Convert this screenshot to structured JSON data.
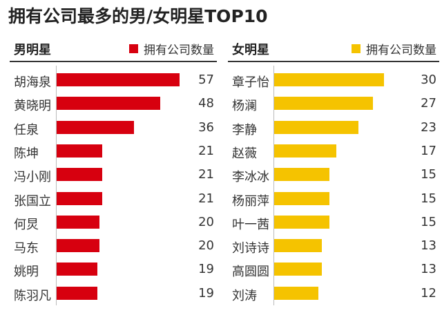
{
  "title": "拥有公司最多的男/女明星TOP10",
  "chart_data": [
    {
      "type": "bar",
      "orientation": "horizontal",
      "panel_title": "男明星",
      "legend": "拥有公司数量",
      "color": "#d7000f",
      "categories": [
        "胡海泉",
        "黄晓明",
        "任泉",
        "陈坤",
        "冯小刚",
        "张国立",
        "何炅",
        "马东",
        "姚明",
        "陈羽凡"
      ],
      "values": [
        57,
        48,
        36,
        21,
        21,
        21,
        20,
        20,
        19,
        19
      ]
    },
    {
      "type": "bar",
      "orientation": "horizontal",
      "panel_title": "女明星",
      "legend": "拥有公司数量",
      "color": "#f5c300",
      "categories": [
        "章子怡",
        "杨澜",
        "李静",
        "赵薇",
        "李冰冰",
        "杨丽萍",
        "叶一茜",
        "刘诗诗",
        "高圆圆",
        "刘涛"
      ],
      "values": [
        30,
        27,
        23,
        17,
        15,
        15,
        15,
        13,
        13,
        12
      ]
    }
  ]
}
